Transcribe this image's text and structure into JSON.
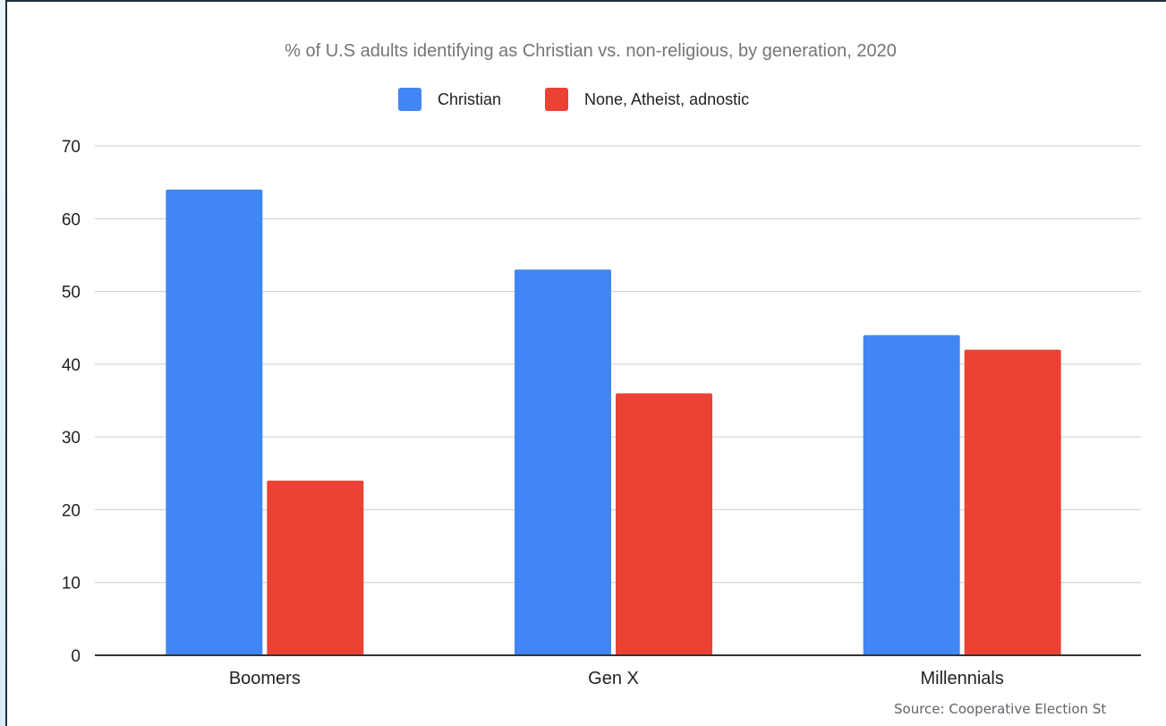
{
  "chart_data": {
    "type": "bar",
    "title": "% of U.S adults identifying as Christian vs. non-religious, by generation, 2020",
    "categories": [
      "Boomers",
      "Gen X",
      "Millennials"
    ],
    "series": [
      {
        "name": "Christian",
        "values": [
          64,
          53,
          44
        ],
        "color": "#4285f4"
      },
      {
        "name": "None, Atheist, adnostic",
        "values": [
          24,
          36,
          42
        ],
        "color": "#ea4335"
      }
    ],
    "ylim": [
      0,
      70
    ],
    "yticks": [
      0,
      10,
      20,
      30,
      40,
      50,
      60,
      70
    ],
    "xlabel": "",
    "ylabel": "",
    "grid": true,
    "legend_position": "top-center"
  },
  "source": "Source: Cooperative Election St"
}
